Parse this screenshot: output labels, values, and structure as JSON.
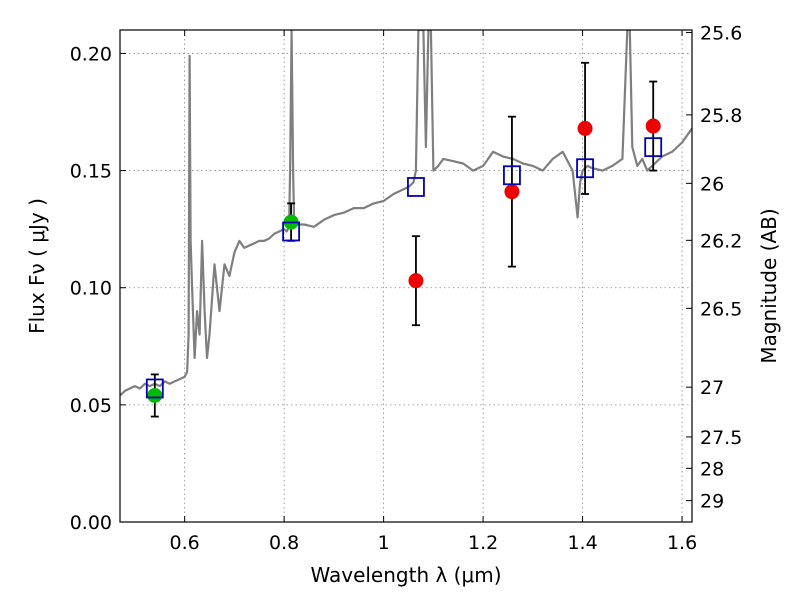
{
  "chart_data": {
    "type": "scatter",
    "title": "",
    "xlabel": "Wavelength  λ (μm)",
    "ylabel": "Flux  Fν  ( μJy )",
    "y2label": "Magnitude (AB)",
    "xlim": [
      0.47,
      1.62
    ],
    "ylim": [
      0.0,
      0.21
    ],
    "grid": true,
    "x_ticks": [
      0.6,
      0.8,
      1.0,
      1.2,
      1.4,
      1.6
    ],
    "x_tick_labels": [
      "0.6",
      "0.8",
      "1",
      "1.2",
      "1.4",
      "1.6"
    ],
    "y_ticks": [
      0.0,
      0.05,
      0.1,
      0.15,
      0.2
    ],
    "y_tick_labels": [
      "0.00",
      "0.05",
      "0.10",
      "0.15",
      "0.20"
    ],
    "mag_ticks": [
      25.6,
      25.8,
      26,
      26.2,
      26.5,
      27,
      27.5,
      28,
      29
    ],
    "mag_tick_labels": [
      "25.6",
      "25.8",
      "26",
      "26.2",
      "26.5",
      "27",
      "27.5",
      "28",
      "29"
    ],
    "series": [
      {
        "name": "model spectrum",
        "kind": "line",
        "color": "#7f7f7f",
        "x": [
          0.47,
          0.48,
          0.49,
          0.5,
          0.51,
          0.52,
          0.53,
          0.54,
          0.55,
          0.56,
          0.57,
          0.58,
          0.59,
          0.6,
          0.605,
          0.608,
          0.61,
          0.612,
          0.615,
          0.62,
          0.625,
          0.63,
          0.635,
          0.64,
          0.645,
          0.65,
          0.655,
          0.66,
          0.67,
          0.68,
          0.69,
          0.7,
          0.71,
          0.72,
          0.73,
          0.74,
          0.75,
          0.76,
          0.77,
          0.78,
          0.79,
          0.8,
          0.805,
          0.81,
          0.812,
          0.815,
          0.818,
          0.82,
          0.825,
          0.83,
          0.84,
          0.86,
          0.88,
          0.9,
          0.92,
          0.94,
          0.96,
          0.98,
          1.0,
          1.02,
          1.04,
          1.05,
          1.06,
          1.065,
          1.07,
          1.08,
          1.085,
          1.09,
          1.095,
          1.1,
          1.11,
          1.12,
          1.14,
          1.16,
          1.18,
          1.2,
          1.21,
          1.22,
          1.24,
          1.26,
          1.28,
          1.3,
          1.32,
          1.34,
          1.36,
          1.38,
          1.39,
          1.395,
          1.4,
          1.41,
          1.42,
          1.44,
          1.46,
          1.48,
          1.49,
          1.495,
          1.5,
          1.51,
          1.52,
          1.53,
          1.54,
          1.55,
          1.56,
          1.58,
          1.6,
          1.62
        ],
        "y": [
          0.054,
          0.056,
          0.057,
          0.058,
          0.057,
          0.059,
          0.058,
          0.059,
          0.058,
          0.06,
          0.059,
          0.06,
          0.061,
          0.062,
          0.064,
          0.08,
          0.199,
          0.12,
          0.1,
          0.07,
          0.09,
          0.08,
          0.12,
          0.09,
          0.07,
          0.08,
          0.095,
          0.11,
          0.09,
          0.11,
          0.105,
          0.115,
          0.12,
          0.117,
          0.118,
          0.119,
          0.12,
          0.12,
          0.121,
          0.123,
          0.124,
          0.125,
          0.124,
          0.126,
          0.15,
          0.21,
          0.15,
          0.128,
          0.127,
          0.127,
          0.127,
          0.126,
          0.129,
          0.131,
          0.132,
          0.134,
          0.134,
          0.136,
          0.137,
          0.14,
          0.142,
          0.143,
          0.145,
          0.15,
          0.21,
          0.21,
          0.16,
          0.21,
          0.21,
          0.15,
          0.152,
          0.155,
          0.154,
          0.153,
          0.15,
          0.152,
          0.155,
          0.158,
          0.156,
          0.155,
          0.153,
          0.152,
          0.15,
          0.155,
          0.158,
          0.15,
          0.13,
          0.145,
          0.15,
          0.152,
          0.151,
          0.15,
          0.152,
          0.155,
          0.21,
          0.21,
          0.16,
          0.152,
          0.155,
          0.15,
          0.152,
          0.154,
          0.156,
          0.158,
          0.162,
          0.168
        ]
      },
      {
        "name": "green photometry",
        "kind": "points",
        "color": "#00bb00",
        "x": [
          0.54,
          0.814
        ],
        "y": [
          0.054,
          0.128
        ],
        "err": [
          0.009,
          0.008
        ]
      },
      {
        "name": "red photometry",
        "kind": "points",
        "color": "#ee0000",
        "x": [
          1.065,
          1.258,
          1.405,
          1.542
        ],
        "y": [
          0.103,
          0.141,
          0.168,
          0.169
        ],
        "err": [
          0.019,
          0.032,
          0.028,
          0.019
        ]
      },
      {
        "name": "model band flux",
        "kind": "squares",
        "color": "#0000bb",
        "x": [
          0.54,
          0.814,
          1.065,
          1.258,
          1.405,
          1.542
        ],
        "y": [
          0.057,
          0.124,
          0.143,
          0.148,
          0.151,
          0.16
        ]
      }
    ]
  }
}
